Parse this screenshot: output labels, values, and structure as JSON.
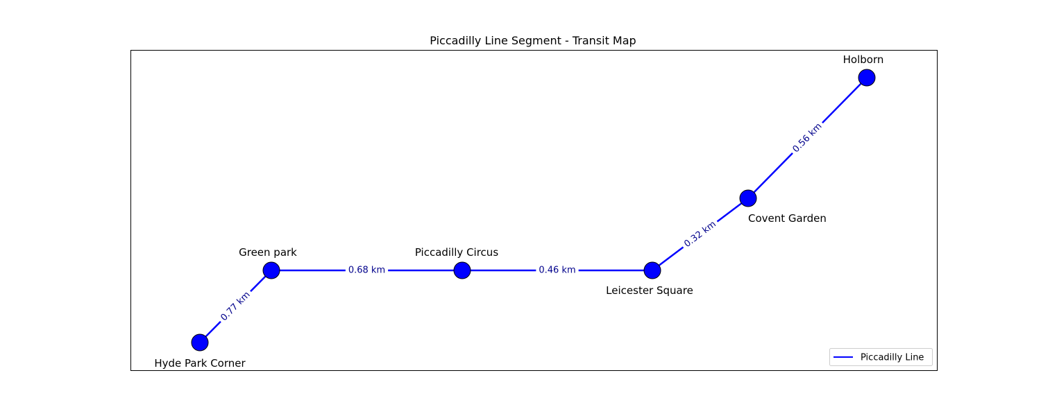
{
  "title": "Piccadilly Line Segment - Transit Map",
  "colors": {
    "line": "#0000ff",
    "station_fill": "#0000ff",
    "station_stroke": "#000000",
    "distance_text": "#00008b",
    "frame": "#000000"
  },
  "legend": {
    "label": "Piccadilly Line",
    "placement": "lower-right"
  },
  "stations": [
    {
      "id": "hyde-park-corner",
      "name": "Hyde Park Corner"
    },
    {
      "id": "green-park",
      "name": "Green park"
    },
    {
      "id": "piccadilly-circus",
      "name": "Piccadilly Circus"
    },
    {
      "id": "leicester-square",
      "name": "Leicester Square"
    },
    {
      "id": "covent-garden",
      "name": "Covent Garden"
    },
    {
      "id": "holborn",
      "name": "Holborn"
    }
  ],
  "segments": [
    {
      "from": "Hyde Park Corner",
      "to": "Green park",
      "label": "0.77 km"
    },
    {
      "from": "Green park",
      "to": "Piccadilly Circus",
      "label": "0.68 km"
    },
    {
      "from": "Piccadilly Circus",
      "to": "Leicester Square",
      "label": "0.46 km"
    },
    {
      "from": "Leicester Square",
      "to": "Covent Garden",
      "label": "0.32 km"
    },
    {
      "from": "Covent Garden",
      "to": "Holborn",
      "label": "0.56 km"
    }
  ]
}
